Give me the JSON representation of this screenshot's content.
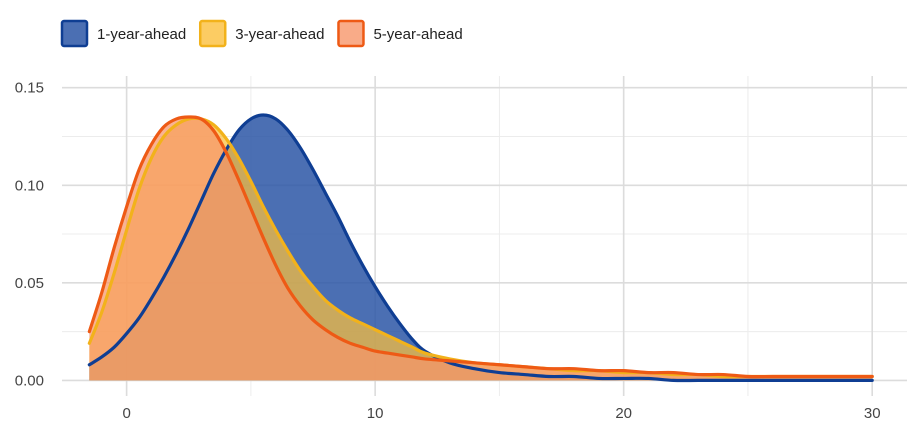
{
  "chart_data": {
    "type": "area",
    "title": "",
    "xlabel": "",
    "ylabel": "",
    "xlim": [
      -2.6,
      31.4
    ],
    "ylim": [
      -0.008,
      0.156
    ],
    "x_ticks": [
      0,
      10,
      20,
      30
    ],
    "x_minor_ticks": [
      5,
      15,
      25
    ],
    "y_ticks": [
      0.0,
      0.05,
      0.1,
      0.15
    ],
    "y_minor_ticks": [
      0.025,
      0.075,
      0.125
    ],
    "x_tick_labels": [
      "0",
      "10",
      "20",
      "30"
    ],
    "y_tick_labels": [
      "0.00",
      "0.05",
      "0.10",
      "0.15"
    ],
    "grid": true,
    "legend_position": "top-left",
    "x": [
      -1.5,
      -1,
      -0.5,
      0,
      0.5,
      1,
      1.5,
      2,
      2.5,
      3,
      3.5,
      4,
      4.5,
      5,
      5.5,
      6,
      6.5,
      7,
      7.5,
      8,
      8.5,
      9,
      9.5,
      10,
      10.5,
      11,
      11.5,
      12,
      13,
      14,
      15,
      16,
      17,
      18,
      19,
      20,
      21,
      22,
      23,
      24,
      25,
      26,
      27,
      28,
      29,
      30
    ],
    "series": [
      {
        "name": "1-year-ahead",
        "fill": "#2b56a6",
        "stroke": "#0f3e93",
        "values": [
          0.008,
          0.012,
          0.017,
          0.024,
          0.032,
          0.042,
          0.053,
          0.065,
          0.078,
          0.092,
          0.106,
          0.118,
          0.128,
          0.134,
          0.136,
          0.134,
          0.128,
          0.119,
          0.108,
          0.096,
          0.084,
          0.071,
          0.059,
          0.048,
          0.038,
          0.029,
          0.021,
          0.015,
          0.009,
          0.006,
          0.004,
          0.003,
          0.002,
          0.002,
          0.001,
          0.001,
          0.001,
          0.0,
          0.0,
          0.0,
          0.0,
          0.0,
          0.0,
          0.0,
          0.0,
          0.0
        ]
      },
      {
        "name": "3-year-ahead",
        "fill": "#fbbf3c",
        "stroke": "#f2b21b",
        "values": [
          0.019,
          0.035,
          0.055,
          0.077,
          0.098,
          0.114,
          0.125,
          0.131,
          0.134,
          0.134,
          0.131,
          0.124,
          0.114,
          0.102,
          0.089,
          0.077,
          0.066,
          0.056,
          0.048,
          0.041,
          0.036,
          0.032,
          0.029,
          0.026,
          0.023,
          0.02,
          0.017,
          0.014,
          0.011,
          0.009,
          0.008,
          0.007,
          0.006,
          0.005,
          0.005,
          0.004,
          0.004,
          0.003,
          0.003,
          0.002,
          0.002,
          0.002,
          0.002,
          0.002,
          0.002,
          0.002
        ]
      },
      {
        "name": "5-year-ahead",
        "fill": "#f7966a",
        "stroke": "#ee5a15",
        "values": [
          0.025,
          0.045,
          0.068,
          0.089,
          0.108,
          0.121,
          0.13,
          0.134,
          0.135,
          0.134,
          0.128,
          0.117,
          0.103,
          0.088,
          0.073,
          0.059,
          0.047,
          0.038,
          0.031,
          0.026,
          0.022,
          0.019,
          0.017,
          0.015,
          0.014,
          0.013,
          0.012,
          0.011,
          0.01,
          0.009,
          0.008,
          0.007,
          0.006,
          0.006,
          0.005,
          0.005,
          0.004,
          0.004,
          0.003,
          0.003,
          0.002,
          0.002,
          0.002,
          0.002,
          0.002,
          0.002
        ]
      }
    ]
  }
}
